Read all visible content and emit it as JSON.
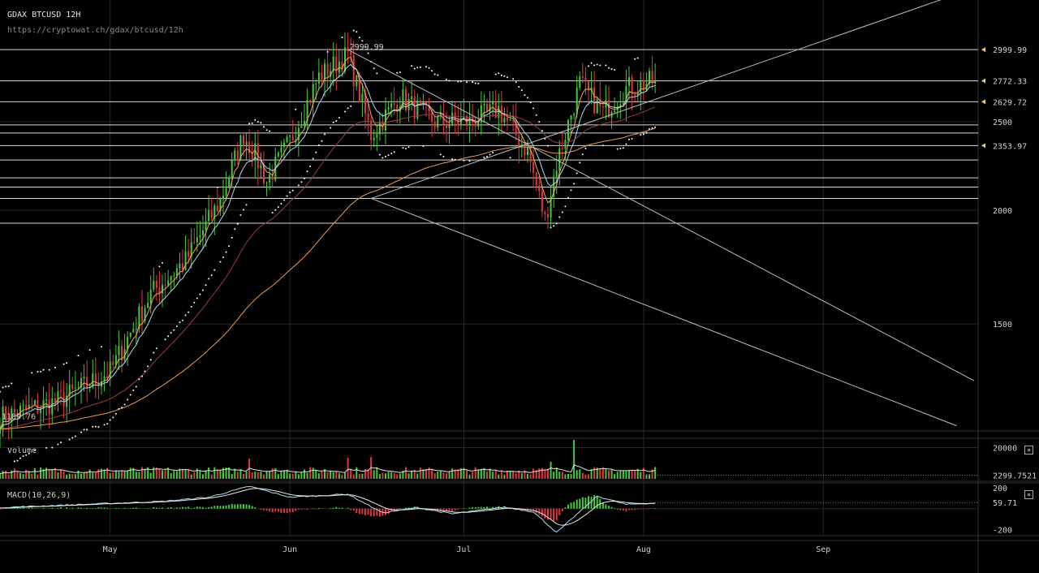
{
  "header": {
    "title": "GDAX BTCUSD 12H",
    "url": "https://cryptowat.ch/gdax/btcusd/12h"
  },
  "colors": {
    "up": "#46c93a",
    "down": "#e2373f",
    "grid": "#262626",
    "level_line": "#d8d8d8",
    "trend_line": "#bdbdbd",
    "ema_fast": "#f4a45c",
    "ema_mid": "#a9dcf2",
    "ema_slow": "#9a3c47",
    "ema_long": "#f09a52",
    "parabolic_sar": "#ffffff",
    "price_marker": "#f2d23c",
    "axis_text": "#cfcfcf"
  },
  "chart_data": [
    {
      "type": "candlestick",
      "title": "",
      "symbol": "BTCUSD",
      "exchange": "GDAX",
      "interval": "12H",
      "y_scale": "log",
      "ylim": [
        1145,
        3400
      ],
      "y_ticks": [
        1500,
        2000,
        2500
      ],
      "x_ticks": [
        {
          "label": "May",
          "date": "2017-05-01"
        },
        {
          "label": "Jun",
          "date": "2017-06-01"
        },
        {
          "label": "Jul",
          "date": "2017-07-01"
        },
        {
          "label": "Aug",
          "date": "2017-08-01"
        },
        {
          "label": "Sep",
          "date": "2017-09-01"
        }
      ],
      "x_range": [
        "2017-04-12",
        "2017-09-27"
      ],
      "ohlc_anchors": [
        {
          "date": "2017-04-12",
          "close": 1185
        },
        {
          "date": "2017-04-22",
          "close": 1235
        },
        {
          "date": "2017-05-01",
          "close": 1330
        },
        {
          "date": "2017-05-08",
          "close": 1620
        },
        {
          "date": "2017-05-14",
          "close": 1760
        },
        {
          "date": "2017-05-20",
          "close": 2050
        },
        {
          "date": "2017-05-24",
          "close": 2420
        },
        {
          "date": "2017-05-26",
          "close": 2300
        },
        {
          "date": "2017-05-28",
          "close": 2150
        },
        {
          "date": "2017-06-01",
          "close": 2380
        },
        {
          "date": "2017-06-06",
          "close": 2800
        },
        {
          "date": "2017-06-11",
          "close": 2960
        },
        {
          "date": "2017-06-15",
          "close": 2420
        },
        {
          "date": "2017-06-20",
          "close": 2660
        },
        {
          "date": "2017-06-26",
          "close": 2500
        },
        {
          "date": "2017-07-02",
          "close": 2500
        },
        {
          "date": "2017-07-07",
          "close": 2580
        },
        {
          "date": "2017-07-12",
          "close": 2320
        },
        {
          "date": "2017-07-15",
          "close": 1950
        },
        {
          "date": "2017-07-17",
          "close": 2250
        },
        {
          "date": "2017-07-21",
          "close": 2750
        },
        {
          "date": "2017-07-25",
          "close": 2560
        },
        {
          "date": "2017-07-29",
          "close": 2720
        },
        {
          "date": "2017-08-03",
          "close": 2772
        }
      ],
      "annotations": {
        "high_label": {
          "date": "2017-06-11",
          "value": 2999.99,
          "text": "2999.99"
        },
        "low_label": {
          "date": "2017-04-12",
          "value": 1189.76,
          "text": "1189.76"
        }
      },
      "right_axis_labels": [
        {
          "value": 2999.99,
          "text": "2999.99",
          "marker": true
        },
        {
          "value": 2772.33,
          "text": "2772.33",
          "marker": true
        },
        {
          "value": 2629.72,
          "text": "2629.72",
          "marker": true
        },
        {
          "value": 2500,
          "text": "2500",
          "marker": false
        },
        {
          "value": 2353.97,
          "text": "2353.97",
          "marker": true
        },
        {
          "value": 2000,
          "text": "2000",
          "marker": false
        },
        {
          "value": 1500,
          "text": "1500",
          "marker": false
        }
      ],
      "horizontal_levels": [
        2999.99,
        2772.33,
        2629.72,
        2480,
        2430,
        2353.97,
        2270,
        2170,
        2120,
        2060,
        1935
      ],
      "trend_lines": [
        {
          "from": {
            "date": "2017-06-15",
            "value": 2060
          },
          "to": {
            "date": "2017-09-24",
            "value": 3450
          }
        },
        {
          "from": {
            "date": "2017-06-11",
            "value": 2999.99
          },
          "to": {
            "date": "2017-09-27",
            "value": 1300
          }
        },
        {
          "from": {
            "date": "2017-06-15",
            "value": 2060
          },
          "to": {
            "date": "2017-09-24",
            "value": 1160
          }
        },
        {
          "from": {
            "date": "2017-06-15",
            "value": 2060
          },
          "to": {
            "date": "2017-06-15",
            "value": 2060
          }
        }
      ],
      "current_price": 2772.33
    },
    {
      "type": "bar",
      "title": "Volume",
      "ylim": [
        0,
        26000
      ],
      "right_axis_labels": [
        {
          "value": 20000,
          "text": "20000"
        },
        {
          "value": 2299.7521,
          "text": "2299.7521"
        }
      ],
      "typical_volume": 5500,
      "spikes": [
        {
          "date": "2017-05-25",
          "value": 13000
        },
        {
          "date": "2017-06-11",
          "value": 13500
        },
        {
          "date": "2017-06-15",
          "value": 14000
        },
        {
          "date": "2017-07-16",
          "value": 11000
        },
        {
          "date": "2017-07-20",
          "value": 25000
        }
      ]
    },
    {
      "type": "line",
      "title": "MACD(10,26,9)",
      "ylim": [
        -260,
        240
      ],
      "right_axis_labels": [
        {
          "value": 200,
          "text": "200"
        },
        {
          "value": 59.71,
          "text": "59.71"
        },
        {
          "value": -200,
          "text": "-200"
        }
      ],
      "macd_anchors": [
        {
          "date": "2017-04-12",
          "value": 10
        },
        {
          "date": "2017-05-10",
          "value": 70
        },
        {
          "date": "2017-05-18",
          "value": 110
        },
        {
          "date": "2017-05-25",
          "value": 215
        },
        {
          "date": "2017-06-01",
          "value": 110
        },
        {
          "date": "2017-06-11",
          "value": 140
        },
        {
          "date": "2017-06-17",
          "value": -40
        },
        {
          "date": "2017-06-23",
          "value": 10
        },
        {
          "date": "2017-06-29",
          "value": -50
        },
        {
          "date": "2017-07-08",
          "value": 15
        },
        {
          "date": "2017-07-13",
          "value": -30
        },
        {
          "date": "2017-07-17",
          "value": -230
        },
        {
          "date": "2017-07-24",
          "value": 120
        },
        {
          "date": "2017-07-29",
          "value": 40
        },
        {
          "date": "2017-08-03",
          "value": 55
        }
      ]
    }
  ],
  "panels": {
    "volume_close": "×",
    "macd_close": "×"
  }
}
